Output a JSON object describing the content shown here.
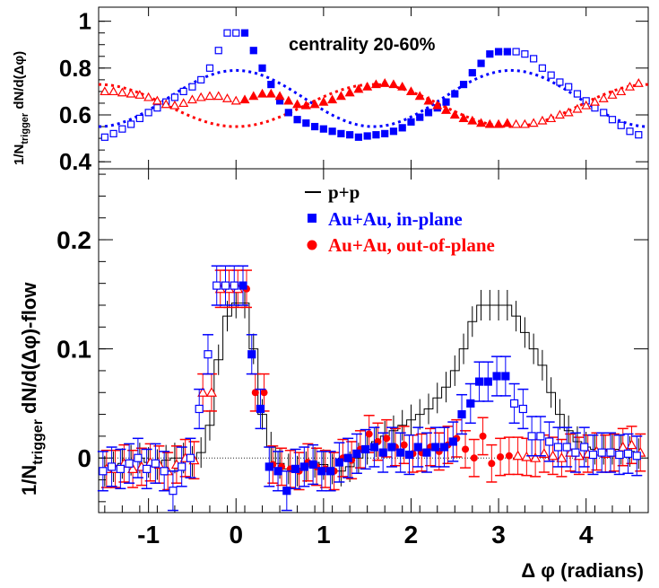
{
  "chart_data": [
    {
      "type": "scatter",
      "panel": "top",
      "annotation": "centrality 20-60%",
      "ylabel": "1/N_trigger dN/d(Δφ)",
      "ylabel_main": "1/N",
      "ylabel_sub": "trigger",
      "ylabel_tail": " dN/d(Δφ)",
      "xlim": [
        -1.57,
        4.71
      ],
      "ylim": [
        0.37,
        1.06
      ],
      "y_ticks": [
        "0.4",
        "0.6",
        "0.8",
        "1"
      ],
      "y_tick_values": [
        0.4,
        0.6,
        0.8,
        1.0
      ],
      "grid": false,
      "colors": {
        "in_plane": "#0000ff",
        "out_plane": "#ff0000"
      },
      "series": [
        {
          "key": "in_plane",
          "marker": "square",
          "x": [
            -1.5,
            -1.4,
            -1.3,
            -1.2,
            -1.1,
            -1.0,
            -0.9,
            -0.8,
            -0.7,
            -0.6,
            -0.5,
            -0.4,
            -0.3,
            -0.2,
            -0.1,
            0.0,
            0.1,
            0.2,
            0.3,
            0.4,
            0.5,
            0.6,
            0.7,
            0.8,
            0.9,
            1.0,
            1.1,
            1.2,
            1.3,
            1.4,
            1.5,
            1.6,
            1.7,
            1.8,
            1.9,
            2.0,
            2.1,
            2.2,
            2.3,
            2.4,
            2.5,
            2.6,
            2.7,
            2.8,
            2.9,
            3.0,
            3.1,
            3.2,
            3.3,
            3.4,
            3.5,
            3.6,
            3.7,
            3.8,
            3.9,
            4.0,
            4.1,
            4.2,
            4.3,
            4.4,
            4.5,
            4.6
          ],
          "y": [
            0.505,
            0.52,
            0.54,
            0.56,
            0.585,
            0.61,
            0.63,
            0.655,
            0.675,
            0.7,
            0.72,
            0.75,
            0.8,
            0.875,
            0.95,
            0.95,
            0.95,
            0.875,
            0.8,
            0.73,
            0.66,
            0.61,
            0.58,
            0.565,
            0.55,
            0.54,
            0.53,
            0.52,
            0.515,
            0.505,
            0.51,
            0.515,
            0.52,
            0.53,
            0.545,
            0.57,
            0.59,
            0.61,
            0.63,
            0.655,
            0.69,
            0.73,
            0.78,
            0.82,
            0.86,
            0.87,
            0.87,
            0.87,
            0.86,
            0.84,
            0.8,
            0.77,
            0.74,
            0.72,
            0.69,
            0.66,
            0.63,
            0.61,
            0.58,
            0.555,
            0.53,
            0.515
          ]
        },
        {
          "key": "out_plane",
          "marker": "triangle",
          "x": [
            -1.5,
            -1.4,
            -1.3,
            -1.2,
            -1.1,
            -1.0,
            -0.9,
            -0.8,
            -0.7,
            -0.6,
            -0.5,
            -0.4,
            -0.3,
            -0.2,
            -0.1,
            0.0,
            0.1,
            0.2,
            0.3,
            0.4,
            0.5,
            0.6,
            0.7,
            0.8,
            0.9,
            1.0,
            1.1,
            1.2,
            1.3,
            1.4,
            1.5,
            1.6,
            1.7,
            1.8,
            1.9,
            2.0,
            2.1,
            2.2,
            2.3,
            2.4,
            2.5,
            2.6,
            2.7,
            2.8,
            2.9,
            3.0,
            3.1,
            3.2,
            3.3,
            3.4,
            3.5,
            3.6,
            3.7,
            3.8,
            3.9,
            4.0,
            4.1,
            4.2,
            4.3,
            4.4,
            4.5,
            4.6
          ],
          "y": [
            0.7,
            0.7,
            0.695,
            0.69,
            0.685,
            0.675,
            0.66,
            0.645,
            0.64,
            0.65,
            0.665,
            0.675,
            0.68,
            0.68,
            0.67,
            0.66,
            0.665,
            0.68,
            0.69,
            0.69,
            0.68,
            0.66,
            0.645,
            0.64,
            0.645,
            0.655,
            0.665,
            0.68,
            0.695,
            0.71,
            0.72,
            0.73,
            0.735,
            0.73,
            0.72,
            0.7,
            0.68,
            0.66,
            0.64,
            0.62,
            0.6,
            0.585,
            0.575,
            0.565,
            0.56,
            0.56,
            0.565,
            0.56,
            0.56,
            0.565,
            0.575,
            0.585,
            0.6,
            0.61,
            0.625,
            0.64,
            0.655,
            0.67,
            0.685,
            0.7,
            0.72,
            0.735
          ]
        }
      ],
      "flow_curves": [
        {
          "key": "in_plane_flow",
          "base": 0.67,
          "amplitude": 0.12
        },
        {
          "key": "out_plane_flow",
          "base": 0.64,
          "amplitude": -0.09
        }
      ]
    },
    {
      "type": "scatter",
      "panel": "bottom",
      "xlabel": "Δ φ (radians)",
      "ylabel": "1/N_trigger dN/d(Δφ)-flow",
      "ylabel_main": "1/N",
      "ylabel_sub": "trigger",
      "ylabel_tail": " dN/d(Δφ)-flow",
      "xlim": [
        -1.57,
        4.71
      ],
      "ylim": [
        -0.05,
        0.265
      ],
      "x_ticks": [
        "-1",
        "0",
        "1",
        "2",
        "3",
        "4"
      ],
      "x_tick_values": [
        -1,
        0,
        1,
        2,
        3,
        4
      ],
      "y_ticks": [
        "0",
        "0.1",
        "0.2"
      ],
      "y_tick_values": [
        0,
        0.1,
        0.2
      ],
      "grid": false,
      "legend_position": "top-center",
      "legend": [
        {
          "label": "p+p",
          "color": "#000000",
          "marker": "line"
        },
        {
          "label": "Au+Au, in-plane",
          "color": "#0000ff",
          "marker": "square"
        },
        {
          "label": "Au+Au, out-of-plane",
          "color": "#ff0000",
          "marker": "circle"
        }
      ],
      "series": [
        {
          "key": "pp",
          "style": "step",
          "x": [
            -1.5,
            -1.4,
            -1.3,
            -1.2,
            -1.1,
            -1.0,
            -0.9,
            -0.8,
            -0.7,
            -0.6,
            -0.5,
            -0.4,
            -0.3,
            -0.2,
            -0.1,
            0.0,
            0.1,
            0.2,
            0.3,
            0.4,
            0.5,
            0.6,
            0.7,
            0.8,
            0.9,
            1.0,
            1.1,
            1.2,
            1.3,
            1.4,
            1.5,
            1.6,
            1.7,
            1.8,
            1.9,
            2.0,
            2.1,
            2.2,
            2.3,
            2.4,
            2.5,
            2.6,
            2.7,
            2.8,
            2.9,
            3.0,
            3.1,
            3.2,
            3.3,
            3.4,
            3.5,
            3.6,
            3.7,
            3.8,
            3.9,
            4.0,
            4.1,
            4.2,
            4.3,
            4.4,
            4.5,
            4.6
          ],
          "y": [
            -0.012,
            -0.008,
            -0.005,
            -0.002,
            0.0,
            -0.004,
            -0.006,
            -0.002,
            0.0,
            0.0,
            -0.003,
            0.005,
            0.03,
            0.09,
            0.13,
            0.142,
            0.142,
            0.1,
            0.04,
            0.01,
            -0.005,
            -0.01,
            -0.012,
            -0.008,
            -0.004,
            -0.006,
            -0.01,
            -0.012,
            -0.008,
            0.0,
            0.008,
            0.015,
            0.02,
            0.025,
            0.03,
            0.035,
            0.04,
            0.045,
            0.055,
            0.065,
            0.08,
            0.1,
            0.125,
            0.14,
            0.14,
            0.14,
            0.14,
            0.13,
            0.115,
            0.1,
            0.085,
            0.06,
            0.04,
            0.025,
            0.015,
            0.01,
            0.008,
            0.008,
            0.008,
            0.008,
            0.006,
            0.004
          ]
        },
        {
          "key": "in_plane",
          "marker": "square",
          "x": [
            -1.5,
            -1.4,
            -1.3,
            -1.2,
            -1.1,
            -1.0,
            -0.9,
            -0.8,
            -0.7,
            -0.6,
            -0.5,
            -0.4,
            -0.3,
            -0.2,
            -0.1,
            0.0,
            0.1,
            0.2,
            0.3,
            0.4,
            0.5,
            0.6,
            0.7,
            0.8,
            0.9,
            1.0,
            1.1,
            1.2,
            1.3,
            1.4,
            1.5,
            1.6,
            1.7,
            1.8,
            1.9,
            2.0,
            2.1,
            2.2,
            2.3,
            2.4,
            2.5,
            2.6,
            2.7,
            2.8,
            2.9,
            3.0,
            3.1,
            3.2,
            3.3,
            3.4,
            3.5,
            3.6,
            3.7,
            3.8,
            3.9,
            4.0,
            4.1,
            4.2,
            4.3,
            4.4,
            4.5,
            4.6
          ],
          "y": [
            -0.012,
            -0.008,
            -0.01,
            -0.005,
            0.0,
            -0.01,
            -0.005,
            -0.012,
            -0.03,
            -0.008,
            0.0,
            0.045,
            0.095,
            0.158,
            0.158,
            0.158,
            0.158,
            0.095,
            0.045,
            -0.008,
            -0.012,
            -0.03,
            -0.01,
            -0.008,
            -0.006,
            -0.012,
            -0.012,
            -0.004,
            0.0,
            0.004,
            0.008,
            0.01,
            0.005,
            0.01,
            0.005,
            0.003,
            0.01,
            0.005,
            0.01,
            0.01,
            0.015,
            0.04,
            0.05,
            0.07,
            0.07,
            0.075,
            0.075,
            0.05,
            0.045,
            0.02,
            0.02,
            0.015,
            0.01,
            0.01,
            0.005,
            0.01,
            0.003,
            0.005,
            0.005,
            0.003,
            0.004,
            0.002
          ]
        },
        {
          "key": "out_plane",
          "marker": "circle",
          "x": [
            -1.5,
            -1.4,
            -1.3,
            -1.2,
            -1.1,
            -1.0,
            -0.9,
            -0.8,
            -0.7,
            -0.6,
            -0.5,
            -0.4,
            -0.3,
            -0.2,
            -0.1,
            0.0,
            0.1,
            0.2,
            0.3,
            0.4,
            0.5,
            0.6,
            0.7,
            0.8,
            0.9,
            1.0,
            1.1,
            1.2,
            1.3,
            1.4,
            1.5,
            1.6,
            1.7,
            1.8,
            1.9,
            2.0,
            2.1,
            2.2,
            2.3,
            2.4,
            2.5,
            2.6,
            2.7,
            2.8,
            2.9,
            3.0,
            3.1,
            3.2,
            3.3,
            3.4,
            3.5,
            3.6,
            3.7,
            3.8,
            3.9,
            4.0,
            4.1,
            4.2,
            4.3,
            4.4,
            4.5,
            4.6
          ],
          "y": [
            -0.01,
            -0.01,
            -0.005,
            -0.01,
            -0.008,
            -0.004,
            -0.006,
            -0.012,
            -0.006,
            0.0,
            -0.002,
            0.06,
            0.06,
            0.155,
            0.155,
            0.155,
            0.155,
            0.06,
            0.06,
            -0.006,
            -0.008,
            -0.01,
            -0.012,
            -0.004,
            -0.008,
            -0.01,
            -0.012,
            0.0,
            -0.002,
            0.008,
            0.022,
            0.015,
            0.018,
            0.01,
            0.012,
            0.004,
            0.005,
            0.01,
            0.006,
            0.012,
            0.018,
            0.008,
            0.0,
            0.02,
            -0.005,
            0.001,
            0.002,
            0.002,
            0.001,
            0.0,
            0.004,
            0.002,
            0.0,
            0.005,
            0.002,
            0.004,
            0.006,
            0.004,
            0.005,
            0.01,
            0.012,
            0.005
          ]
        }
      ],
      "error_bars": {
        "pp": 0.014,
        "in_plane": 0.018,
        "out_plane": 0.017
      }
    }
  ]
}
